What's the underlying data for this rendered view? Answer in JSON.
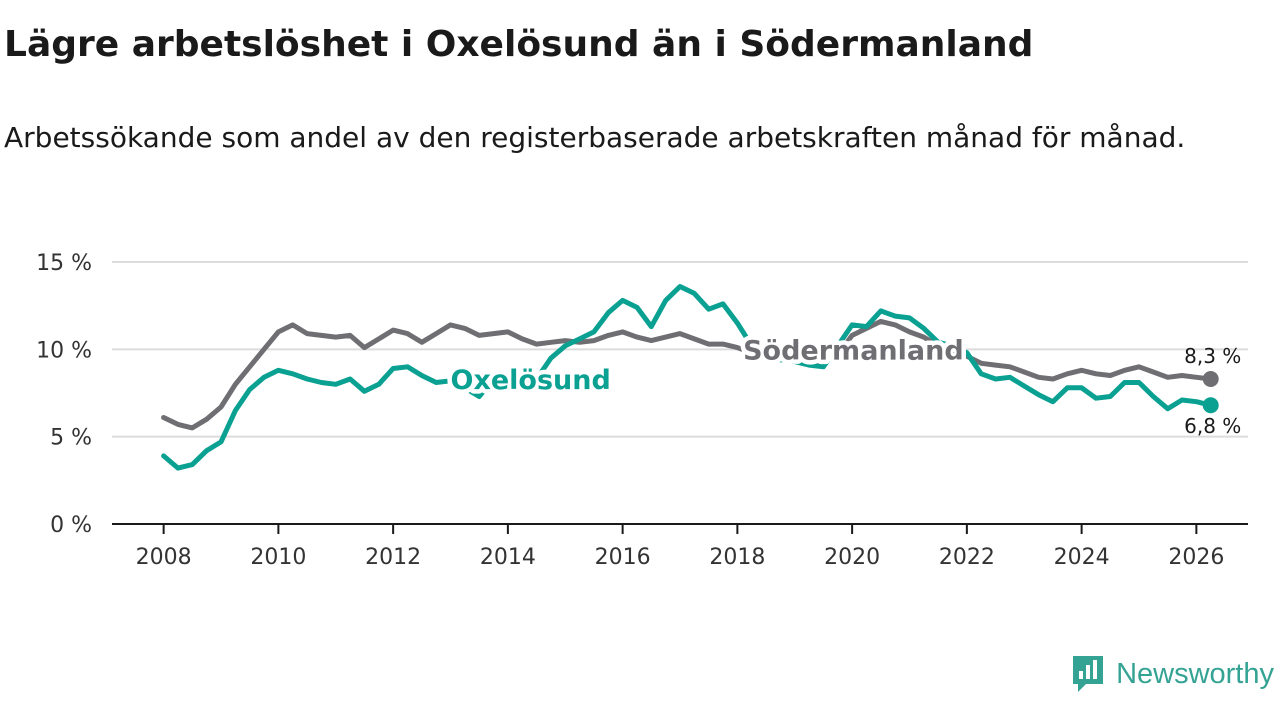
{
  "title": "Lägre arbetslöshet i Oxelösund än i Södermanland",
  "subtitle": "Arbetssökande som andel av den registerbaserade arbetskraften månad för månad.",
  "brand": "Newsworthy",
  "colors": {
    "oxelosund": "#0aa192",
    "sodermanland": "#6f6f73",
    "grid": "#dcdcdc",
    "axis": "#1a1a1a"
  },
  "chart_data": {
    "type": "line",
    "title": "Lägre arbetslöshet i Oxelösund än i Södermanland",
    "xlabel": "",
    "ylabel": "",
    "xlim": [
      2007.1,
      2026.9
    ],
    "ylim": [
      0,
      15
    ],
    "xticks": [
      2008,
      2010,
      2012,
      2014,
      2016,
      2018,
      2020,
      2022,
      2024,
      2026
    ],
    "xtick_labels": [
      "2008",
      "2010",
      "2012",
      "2014",
      "2016",
      "2018",
      "2020",
      "2022",
      "2024",
      "2026"
    ],
    "yticks": [
      0,
      5,
      10,
      15
    ],
    "ytick_labels": [
      "0 %",
      "5 %",
      "10 %",
      "15 %"
    ],
    "grid": true,
    "series": [
      {
        "name": "Oxelösund",
        "color": "#0aa192",
        "label": "Oxelösund",
        "end_label": "6,8 %",
        "points": [
          [
            2008.0,
            3.9
          ],
          [
            2008.25,
            3.2
          ],
          [
            2008.5,
            3.4
          ],
          [
            2008.75,
            4.2
          ],
          [
            2009.0,
            4.7
          ],
          [
            2009.25,
            6.5
          ],
          [
            2009.5,
            7.7
          ],
          [
            2009.75,
            8.4
          ],
          [
            2010.0,
            8.8
          ],
          [
            2010.25,
            8.6
          ],
          [
            2010.5,
            8.3
          ],
          [
            2010.75,
            8.1
          ],
          [
            2011.0,
            8.0
          ],
          [
            2011.25,
            8.3
          ],
          [
            2011.5,
            7.6
          ],
          [
            2011.75,
            8.0
          ],
          [
            2012.0,
            8.9
          ],
          [
            2012.25,
            9.0
          ],
          [
            2012.5,
            8.5
          ],
          [
            2012.75,
            8.1
          ],
          [
            2013.0,
            8.2
          ],
          [
            2013.25,
            7.8
          ],
          [
            2013.5,
            7.3
          ],
          [
            2013.75,
            8.3
          ],
          [
            2014.0,
            8.5
          ],
          [
            2014.25,
            8.5
          ],
          [
            2014.5,
            8.3
          ],
          [
            2014.75,
            9.5
          ],
          [
            2015.0,
            10.2
          ],
          [
            2015.25,
            10.6
          ],
          [
            2015.5,
            11.0
          ],
          [
            2015.75,
            12.1
          ],
          [
            2016.0,
            12.8
          ],
          [
            2016.25,
            12.4
          ],
          [
            2016.5,
            11.3
          ],
          [
            2016.75,
            12.8
          ],
          [
            2017.0,
            13.6
          ],
          [
            2017.25,
            13.2
          ],
          [
            2017.5,
            12.3
          ],
          [
            2017.75,
            12.6
          ],
          [
            2018.0,
            11.5
          ],
          [
            2018.25,
            10.2
          ],
          [
            2018.5,
            9.6
          ],
          [
            2018.75,
            9.4
          ],
          [
            2019.0,
            9.3
          ],
          [
            2019.25,
            9.1
          ],
          [
            2019.5,
            9.0
          ],
          [
            2019.75,
            10.2
          ],
          [
            2020.0,
            11.4
          ],
          [
            2020.25,
            11.3
          ],
          [
            2020.5,
            12.2
          ],
          [
            2020.75,
            11.9
          ],
          [
            2021.0,
            11.8
          ],
          [
            2021.25,
            11.2
          ],
          [
            2021.5,
            10.4
          ],
          [
            2021.75,
            10.2
          ],
          [
            2022.0,
            9.8
          ],
          [
            2022.25,
            8.6
          ],
          [
            2022.5,
            8.3
          ],
          [
            2022.75,
            8.4
          ],
          [
            2023.0,
            7.9
          ],
          [
            2023.25,
            7.4
          ],
          [
            2023.5,
            7.0
          ],
          [
            2023.75,
            7.8
          ],
          [
            2024.0,
            7.8
          ],
          [
            2024.25,
            7.2
          ],
          [
            2024.5,
            7.3
          ],
          [
            2024.75,
            8.1
          ],
          [
            2025.0,
            8.1
          ],
          [
            2025.25,
            7.3
          ],
          [
            2025.5,
            6.6
          ],
          [
            2025.75,
            7.1
          ],
          [
            2026.0,
            7.0
          ],
          [
            2026.25,
            6.8
          ]
        ]
      },
      {
        "name": "Södermanland",
        "color": "#6f6f73",
        "label": "Södermanland",
        "end_label": "8,3 %",
        "points": [
          [
            2008.0,
            6.1
          ],
          [
            2008.25,
            5.7
          ],
          [
            2008.5,
            5.5
          ],
          [
            2008.75,
            6.0
          ],
          [
            2009.0,
            6.7
          ],
          [
            2009.25,
            8.0
          ],
          [
            2009.5,
            9.0
          ],
          [
            2009.75,
            10.0
          ],
          [
            2010.0,
            11.0
          ],
          [
            2010.25,
            11.4
          ],
          [
            2010.5,
            10.9
          ],
          [
            2010.75,
            10.8
          ],
          [
            2011.0,
            10.7
          ],
          [
            2011.25,
            10.8
          ],
          [
            2011.5,
            10.1
          ],
          [
            2011.75,
            10.6
          ],
          [
            2012.0,
            11.1
          ],
          [
            2012.25,
            10.9
          ],
          [
            2012.5,
            10.4
          ],
          [
            2012.75,
            10.9
          ],
          [
            2013.0,
            11.4
          ],
          [
            2013.25,
            11.2
          ],
          [
            2013.5,
            10.8
          ],
          [
            2013.75,
            10.9
          ],
          [
            2014.0,
            11.0
          ],
          [
            2014.25,
            10.6
          ],
          [
            2014.5,
            10.3
          ],
          [
            2014.75,
            10.4
          ],
          [
            2015.0,
            10.5
          ],
          [
            2015.25,
            10.4
          ],
          [
            2015.5,
            10.5
          ],
          [
            2015.75,
            10.8
          ],
          [
            2016.0,
            11.0
          ],
          [
            2016.25,
            10.7
          ],
          [
            2016.5,
            10.5
          ],
          [
            2016.75,
            10.7
          ],
          [
            2017.0,
            10.9
          ],
          [
            2017.25,
            10.6
          ],
          [
            2017.5,
            10.3
          ],
          [
            2017.75,
            10.3
          ],
          [
            2018.0,
            10.1
          ],
          [
            2018.25,
            9.8
          ],
          [
            2018.5,
            9.6
          ],
          [
            2018.75,
            9.5
          ],
          [
            2019.0,
            9.4
          ],
          [
            2019.25,
            9.2
          ],
          [
            2019.5,
            9.3
          ],
          [
            2019.75,
            9.7
          ],
          [
            2020.0,
            10.8
          ],
          [
            2020.25,
            11.2
          ],
          [
            2020.5,
            11.6
          ],
          [
            2020.75,
            11.4
          ],
          [
            2021.0,
            11.0
          ],
          [
            2021.25,
            10.7
          ],
          [
            2021.5,
            10.2
          ],
          [
            2021.75,
            10.0
          ],
          [
            2022.0,
            9.6
          ],
          [
            2022.25,
            9.2
          ],
          [
            2022.5,
            9.1
          ],
          [
            2022.75,
            9.0
          ],
          [
            2023.0,
            8.7
          ],
          [
            2023.25,
            8.4
          ],
          [
            2023.5,
            8.3
          ],
          [
            2023.75,
            8.6
          ],
          [
            2024.0,
            8.8
          ],
          [
            2024.25,
            8.6
          ],
          [
            2024.5,
            8.5
          ],
          [
            2024.75,
            8.8
          ],
          [
            2025.0,
            9.0
          ],
          [
            2025.25,
            8.7
          ],
          [
            2025.5,
            8.4
          ],
          [
            2025.75,
            8.5
          ],
          [
            2026.0,
            8.4
          ],
          [
            2026.25,
            8.3
          ]
        ]
      }
    ]
  }
}
